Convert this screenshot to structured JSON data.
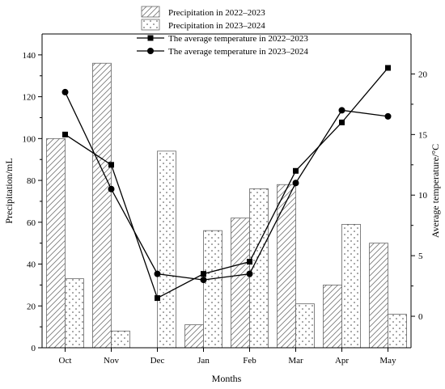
{
  "chart_data": {
    "type": "bar",
    "xlabel": "Months",
    "ylabel": "Precipitation/mL",
    "y2label": "Average temperature/°C",
    "categories": [
      "Oct",
      "Nov",
      "Dec",
      "Jan",
      "Feb",
      "Mar",
      "Apr",
      "May"
    ],
    "ylim": [
      0,
      150
    ],
    "y2lim": [
      -2.6,
      23.3
    ],
    "yticks": [
      0,
      20,
      40,
      60,
      80,
      100,
      120,
      140
    ],
    "y2ticks": [
      0,
      5,
      10,
      15,
      20
    ],
    "series": [
      {
        "name": "Precipitation in 2022–2023",
        "kind": "bar",
        "pattern": "hatch",
        "values": [
          100,
          136,
          0,
          11,
          62,
          78,
          30,
          50
        ]
      },
      {
        "name": "Precipitation in 2023–2024",
        "kind": "bar",
        "pattern": "dots",
        "values": [
          33,
          8,
          94,
          56,
          76,
          21,
          59,
          16
        ]
      },
      {
        "name": "The average temperature in 2022–2023",
        "kind": "line",
        "marker": "square",
        "axis": "right",
        "values": [
          15,
          12.5,
          1.5,
          3.5,
          4.5,
          12,
          16,
          20.5
        ]
      },
      {
        "name": "The average temperature in 2023–2024",
        "kind": "line",
        "marker": "circle",
        "axis": "right",
        "values": [
          18.5,
          10.5,
          3.5,
          3,
          3.5,
          11,
          17,
          16.5
        ]
      }
    ],
    "legend_position": "top-right",
    "grid": false
  }
}
